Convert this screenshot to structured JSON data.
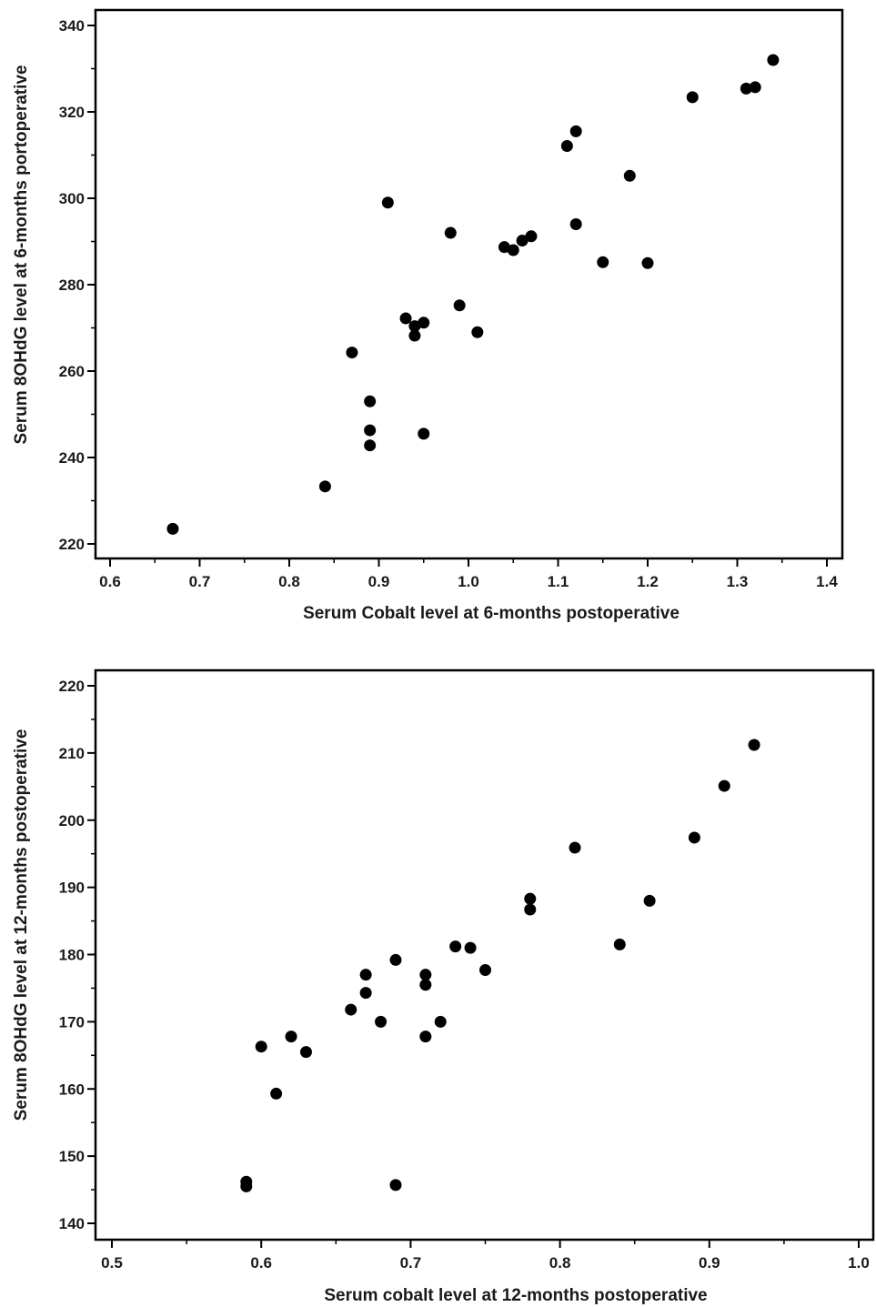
{
  "chart_data": [
    {
      "type": "scatter",
      "title": "",
      "xlabel": "Serum Cobalt level at 6-months postoperative",
      "ylabel": "Serum 8OHdG level at 6-months portoperative",
      "xlim": [
        0.6,
        1.4
      ],
      "ylim": [
        220,
        340
      ],
      "x_ticks": [
        0.6,
        0.7,
        0.8,
        0.9,
        1.0,
        1.1,
        1.2,
        1.3,
        1.4
      ],
      "x_tick_labels": [
        "0.6",
        "0.7",
        "0.8",
        "0.9",
        "1.0",
        "1.1",
        "1.2",
        "1.3",
        "1.4"
      ],
      "y_ticks": [
        220,
        240,
        260,
        280,
        300,
        320,
        340
      ],
      "y_tick_labels": [
        "220",
        "240",
        "260",
        "280",
        "300",
        "320",
        "340"
      ],
      "grid": false,
      "marker_color": "#000000",
      "points": [
        {
          "x": 0.67,
          "y": 223.5
        },
        {
          "x": 0.84,
          "y": 233.3
        },
        {
          "x": 0.87,
          "y": 264.3
        },
        {
          "x": 0.89,
          "y": 253.0
        },
        {
          "x": 0.89,
          "y": 246.3
        },
        {
          "x": 0.89,
          "y": 242.8
        },
        {
          "x": 0.91,
          "y": 299.0
        },
        {
          "x": 0.93,
          "y": 272.2
        },
        {
          "x": 0.94,
          "y": 270.4
        },
        {
          "x": 0.94,
          "y": 268.2
        },
        {
          "x": 0.95,
          "y": 271.2
        },
        {
          "x": 0.95,
          "y": 245.5
        },
        {
          "x": 0.98,
          "y": 292.0
        },
        {
          "x": 0.99,
          "y": 275.2
        },
        {
          "x": 1.01,
          "y": 269.0
        },
        {
          "x": 1.04,
          "y": 288.7
        },
        {
          "x": 1.05,
          "y": 288.0
        },
        {
          "x": 1.06,
          "y": 290.2
        },
        {
          "x": 1.07,
          "y": 291.2
        },
        {
          "x": 1.11,
          "y": 312.1
        },
        {
          "x": 1.12,
          "y": 315.5
        },
        {
          "x": 1.12,
          "y": 294.0
        },
        {
          "x": 1.15,
          "y": 285.2
        },
        {
          "x": 1.18,
          "y": 305.2
        },
        {
          "x": 1.2,
          "y": 285.0
        },
        {
          "x": 1.25,
          "y": 323.4
        },
        {
          "x": 1.31,
          "y": 325.4
        },
        {
          "x": 1.32,
          "y": 325.7
        },
        {
          "x": 1.34,
          "y": 332.0
        }
      ]
    },
    {
      "type": "scatter",
      "title": "",
      "xlabel": "Serum cobalt level at 12-months postoperative",
      "ylabel": "Serum 8OHdG level at 12-months postoperative",
      "xlim": [
        0.49,
        1.0
      ],
      "ylim": [
        138,
        221
      ],
      "x_ticks": [
        0.5,
        0.6,
        0.7,
        0.8,
        0.9,
        1.0
      ],
      "x_tick_labels": [
        "0.5",
        "0.6",
        "0.7",
        "0.8",
        "0.9",
        "1.0"
      ],
      "y_ticks": [
        140,
        150,
        160,
        170,
        180,
        190,
        200,
        210,
        220
      ],
      "y_tick_labels": [
        "140",
        "150",
        "160",
        "170",
        "180",
        "190",
        "200",
        "210",
        "220"
      ],
      "grid": false,
      "marker_color": "#000000",
      "points": [
        {
          "x": 0.59,
          "y": 146.2
        },
        {
          "x": 0.59,
          "y": 145.5
        },
        {
          "x": 0.6,
          "y": 166.3
        },
        {
          "x": 0.61,
          "y": 159.3
        },
        {
          "x": 0.62,
          "y": 167.8
        },
        {
          "x": 0.63,
          "y": 165.5
        },
        {
          "x": 0.66,
          "y": 171.8
        },
        {
          "x": 0.67,
          "y": 177.0
        },
        {
          "x": 0.67,
          "y": 174.3
        },
        {
          "x": 0.68,
          "y": 170.0
        },
        {
          "x": 0.69,
          "y": 179.2
        },
        {
          "x": 0.69,
          "y": 145.7
        },
        {
          "x": 0.71,
          "y": 177.0
        },
        {
          "x": 0.71,
          "y": 175.5
        },
        {
          "x": 0.71,
          "y": 167.8
        },
        {
          "x": 0.72,
          "y": 170.0
        },
        {
          "x": 0.73,
          "y": 181.2
        },
        {
          "x": 0.74,
          "y": 181.0
        },
        {
          "x": 0.75,
          "y": 177.7
        },
        {
          "x": 0.78,
          "y": 188.3
        },
        {
          "x": 0.78,
          "y": 186.7
        },
        {
          "x": 0.81,
          "y": 195.9
        },
        {
          "x": 0.84,
          "y": 181.5
        },
        {
          "x": 0.86,
          "y": 188.0
        },
        {
          "x": 0.89,
          "y": 197.4
        },
        {
          "x": 0.91,
          "y": 205.1
        },
        {
          "x": 0.93,
          "y": 211.2
        }
      ]
    }
  ]
}
